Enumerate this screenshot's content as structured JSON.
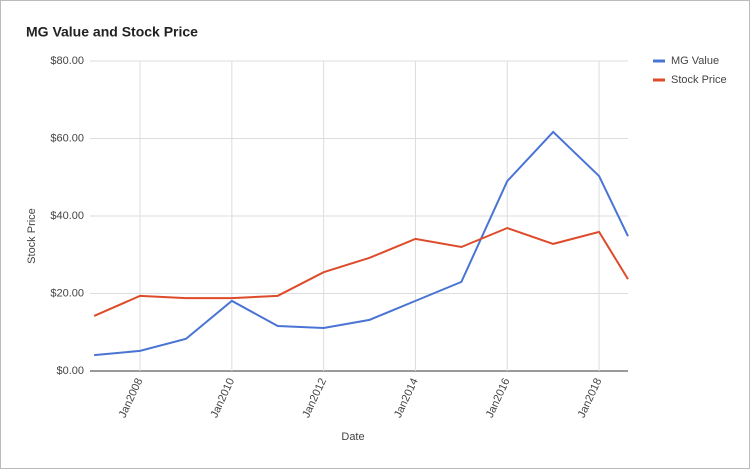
{
  "chart_data": {
    "type": "line",
    "title": "MG Value and Stock Price",
    "x": [
      2007,
      2008,
      2009,
      2010,
      2011,
      2012,
      2013,
      2014,
      2015,
      2016,
      2017,
      2018,
      2018.63
    ],
    "series": [
      {
        "name": "MG Value",
        "color": "#4a74d4",
        "values": [
          4.1,
          5.2,
          8.3,
          18.1,
          11.6,
          11.1,
          13.2,
          18.1,
          23.0,
          49.0,
          61.7,
          50.3,
          34.8
        ]
      },
      {
        "name": "Stock Price",
        "color": "#dd4b2b",
        "values": [
          14.2,
          19.4,
          18.8,
          18.8,
          19.4,
          25.5,
          29.2,
          34.1,
          32.0,
          36.9,
          32.8,
          35.9,
          23.7
        ]
      }
    ],
    "xlim": [
      2006.91,
      2018.63
    ],
    "xticks": [
      {
        "value": 2008,
        "label": "Jan2008"
      },
      {
        "value": 2010,
        "label": "Jan2010"
      },
      {
        "value": 2012,
        "label": "Jan2012"
      },
      {
        "value": 2014,
        "label": "Jan2014"
      },
      {
        "value": 2016,
        "label": "Jan2016"
      },
      {
        "value": 2018,
        "label": "Jan2018"
      }
    ],
    "ylim": [
      0,
      80
    ],
    "yticks": [
      {
        "value": 0,
        "label": "$0.00"
      },
      {
        "value": 20,
        "label": "$20.00"
      },
      {
        "value": 40,
        "label": "$40.00"
      },
      {
        "value": 60,
        "label": "$60.00"
      },
      {
        "value": 80,
        "label": "$80.00"
      }
    ],
    "xlabel": "Date",
    "ylabel": "Stock Price",
    "grid": true,
    "legend": "right"
  }
}
